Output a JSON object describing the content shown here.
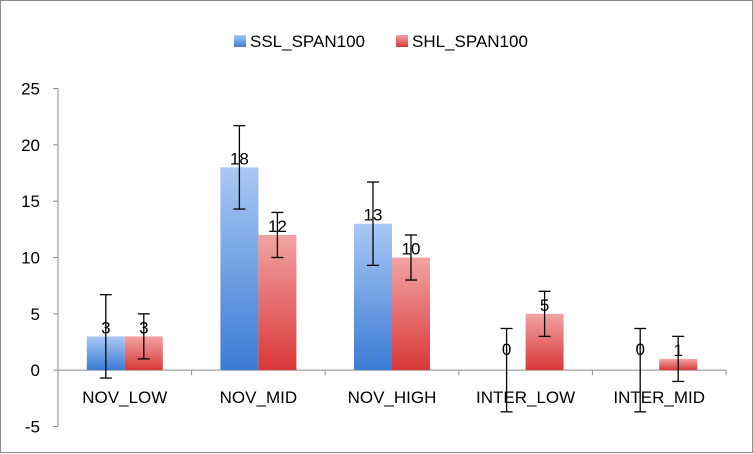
{
  "chart_data": {
    "type": "bar",
    "title": "",
    "xlabel": "",
    "ylabel": "",
    "categories": [
      "NOV_LOW",
      "NOV_MID",
      "NOV_HIGH",
      "INTER_LOW",
      "INTER_MID"
    ],
    "series": [
      {
        "name": "SSL_SPAN100",
        "values": [
          3,
          18,
          13,
          0,
          0
        ],
        "error": [
          3.7,
          3.7,
          3.7,
          3.7,
          3.7
        ],
        "color": "#6b9fe6"
      },
      {
        "name": "SHL_SPAN100",
        "values": [
          3,
          12,
          10,
          5,
          1
        ],
        "error": [
          2,
          2,
          2,
          2,
          2
        ],
        "color": "#e35a5a"
      }
    ],
    "data_labels": [
      [
        "3",
        "18",
        "13",
        "0",
        "0"
      ],
      [
        "3",
        "12",
        "10",
        "5",
        "1"
      ]
    ],
    "ylim": [
      -5,
      25
    ],
    "yticks": [
      -5,
      0,
      5,
      10,
      15,
      20,
      25
    ],
    "ytick_labels": [
      "-5",
      "0",
      "5",
      "10",
      "15",
      "20",
      "25"
    ],
    "grid": false,
    "legend_position": "top"
  }
}
